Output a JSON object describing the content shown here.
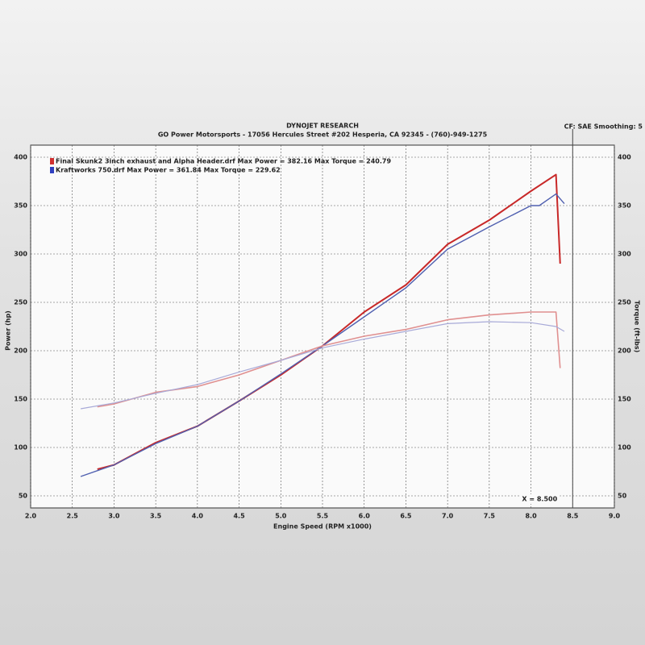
{
  "chart_data": {
    "type": "line",
    "title": "DYNOJET RESEARCH",
    "subtitle": "GO Power Motorsports - 17056 Hercules Street #202 Hesperia, CA 92345 - (760)-949-1275",
    "settings_label": "CF: SAE  Smoothing: 5",
    "x_label": "Engine Speed (RPM x1000)",
    "y_label": "Power (hp)",
    "y2_label": "Torque (ft-lbs)",
    "xlim": [
      2.0,
      9.0
    ],
    "xticks": [
      {
        "value": 2,
        "label": "2.0"
      },
      2.5,
      {
        "value": 3,
        "label": "3.0"
      },
      3.5,
      {
        "value": 4,
        "label": "4.0"
      },
      4.5,
      {
        "value": 5,
        "label": "5.0"
      },
      5.5,
      {
        "value": 6,
        "label": "6.0"
      },
      6.5,
      {
        "value": 7,
        "label": "7.0"
      },
      7.5,
      {
        "value": 8,
        "label": "8.0"
      },
      8.5,
      {
        "value": 9,
        "label": "9.0"
      }
    ],
    "ylim": [
      37.5,
      412.5
    ],
    "yticks": [
      50,
      100,
      150,
      200,
      250,
      300,
      350,
      400
    ],
    "y2lim": [
      37.5,
      412.5
    ],
    "y2ticks": [
      50,
      100,
      150,
      200,
      250,
      300,
      350,
      400
    ],
    "grid": true,
    "cursor_x": 8.5,
    "cursor_label": "X = 8.500",
    "legend_entries": [
      "Final Skunk2 3inch exhaust and Alpha Header.drf Max Power = 382.16 Max Torque = 240.79",
      "Kraftworks 750.drf Max Power = 361.84 Max Torque = 229.62"
    ],
    "legend_colors": [
      "#d03030",
      "#3040c0"
    ],
    "series": [
      {
        "color": "#c82828",
        "width": 2,
        "x": [
          2.8,
          3.0,
          3.5,
          4.0,
          4.5,
          5.0,
          5.5,
          6.0,
          6.5,
          7.0,
          7.5,
          8.0,
          8.3,
          8.35
        ],
        "values": [
          77.5,
          82,
          105,
          122,
          148,
          175,
          205,
          240,
          268,
          310,
          335,
          365,
          382,
          290
        ]
      },
      {
        "color": "#5060b0",
        "width": 1.4,
        "x": [
          2.6,
          3.0,
          3.5,
          4.0,
          4.5,
          5.0,
          5.5,
          6.0,
          6.5,
          7.0,
          7.5,
          8.0,
          8.1,
          8.3,
          8.4
        ],
        "values": [
          70,
          82,
          104,
          122,
          148,
          176,
          205,
          235,
          265,
          305,
          328,
          350,
          350,
          362,
          352
        ]
      },
      {
        "color": "#e09090",
        "width": 1.6,
        "axis": "y2",
        "x": [
          2.8,
          3.0,
          3.5,
          4.0,
          4.5,
          5.0,
          5.5,
          6.0,
          6.5,
          7.0,
          7.5,
          8.0,
          8.3,
          8.35
        ],
        "values": [
          142,
          145,
          157,
          163,
          175,
          190,
          205,
          215,
          222,
          232,
          237,
          240,
          240,
          182
        ]
      },
      {
        "color": "#a8aad8",
        "width": 1.2,
        "axis": "y2",
        "x": [
          2.6,
          3.0,
          3.5,
          4.0,
          4.5,
          5.0,
          5.5,
          6.0,
          6.5,
          7.0,
          7.5,
          8.0,
          8.3,
          8.4
        ],
        "values": [
          140,
          146,
          156,
          165,
          178,
          190,
          203,
          212,
          220,
          228,
          230,
          229,
          225,
          220
        ]
      }
    ]
  }
}
